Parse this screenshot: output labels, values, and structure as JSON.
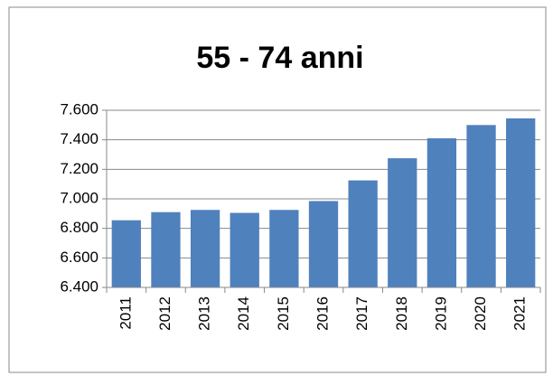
{
  "chart_data": {
    "type": "bar",
    "title": "55 - 74 anni",
    "categories": [
      "2011",
      "2012",
      "2013",
      "2014",
      "2015",
      "2016",
      "2017",
      "2018",
      "2019",
      "2020",
      "2021"
    ],
    "values": [
      6855,
      6910,
      6925,
      6905,
      6925,
      6985,
      7125,
      7275,
      7410,
      7500,
      7545
    ],
    "color": "#4f81bd",
    "ylim": [
      6400,
      7600
    ],
    "yticks": [
      {
        "value": 6400,
        "label": "6.400"
      },
      {
        "value": 6600,
        "label": "6.600"
      },
      {
        "value": 6800,
        "label": "6.800"
      },
      {
        "value": 7000,
        "label": "7.000"
      },
      {
        "value": 7200,
        "label": "7.200"
      },
      {
        "value": 7400,
        "label": "7.400"
      },
      {
        "value": 7600,
        "label": "7.600"
      }
    ],
    "grid": true
  }
}
